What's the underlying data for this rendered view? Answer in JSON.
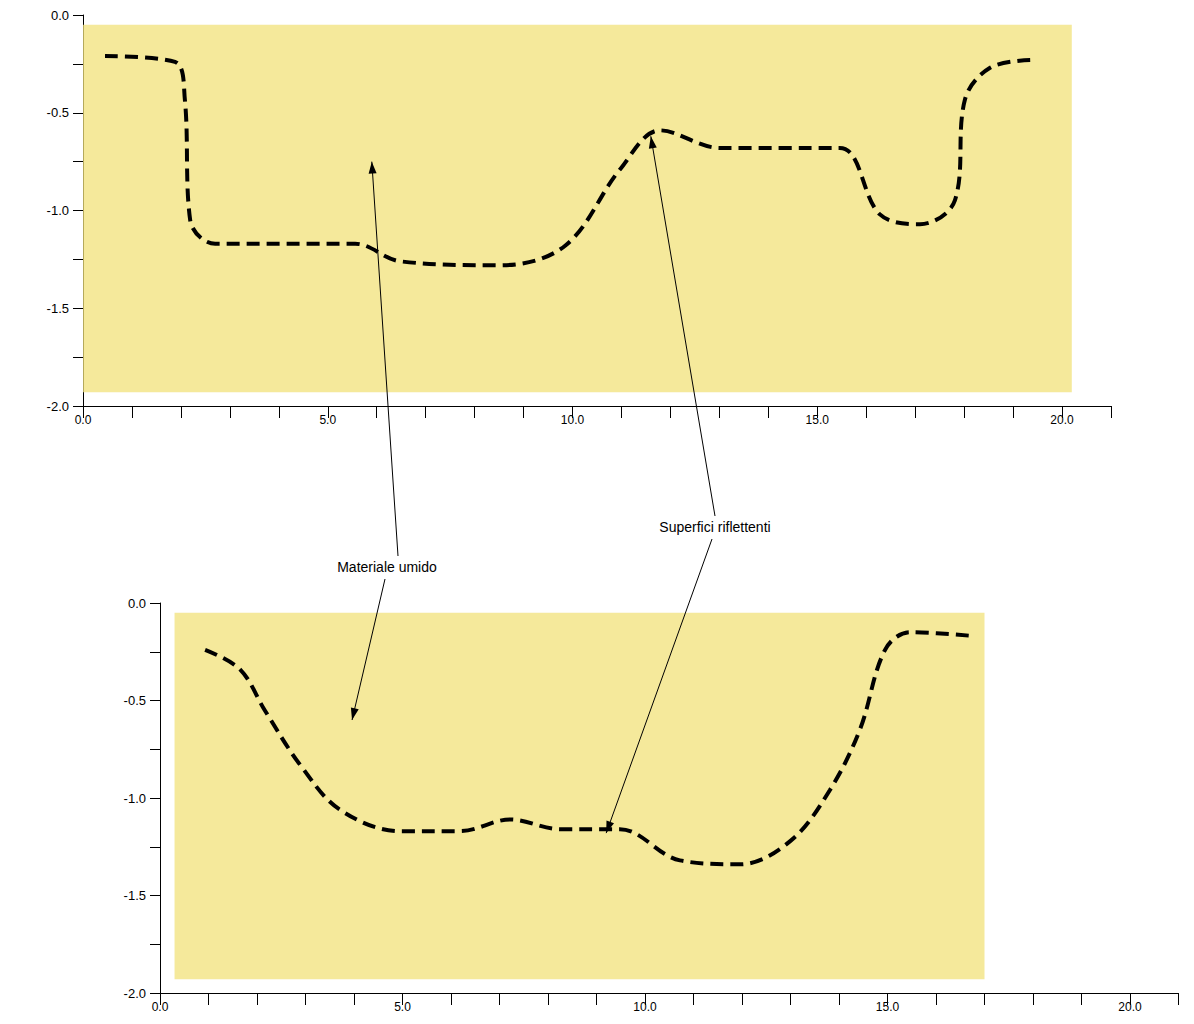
{
  "chart_data": [
    {
      "type": "line",
      "xlim": [
        0,
        21
      ],
      "xticks": [
        {
          "value": 0,
          "label": "0.0"
        },
        {
          "value": 5,
          "label": "5.0"
        },
        {
          "value": 10,
          "label": "10.0"
        },
        {
          "value": 15,
          "label": "15.0"
        },
        {
          "value": 20,
          "label": "20.0"
        }
      ],
      "ylim": [
        -2,
        0
      ],
      "yticks": [
        {
          "value": -2,
          "label": "-2.0"
        },
        {
          "value": -1.5,
          "label": "-1.5"
        },
        {
          "value": -1,
          "label": "-1.0"
        },
        {
          "value": -0.5,
          "label": "-0.5"
        },
        {
          "value": 0,
          "label": "0.0"
        }
      ],
      "grid": false,
      "section": {
        "x": [
          0.0,
          20.2
        ],
        "y": [
          -1.93,
          -0.05
        ],
        "color": "#f2e27a"
      },
      "series": [
        {
          "color": "#000000",
          "line_style": "dashed",
          "x": [
            0.45,
            1.88,
            2.08,
            2.19,
            2.7,
            5.56,
            6.48,
            8.52,
            9.85,
            10.97,
            11.79,
            13.01,
            15.46,
            16.28,
            17.1,
            17.81,
            18.02,
            18.53,
            19.35
          ],
          "values": [
            -0.21,
            -0.24,
            -0.43,
            -1.05,
            -1.17,
            -1.17,
            -1.26,
            -1.28,
            -1.18,
            -0.79,
            -0.59,
            -0.68,
            -0.68,
            -1.02,
            -1.07,
            -0.95,
            -0.43,
            -0.27,
            -0.23
          ]
        }
      ]
    },
    {
      "type": "line",
      "xlim": [
        0,
        21
      ],
      "xticks": [
        {
          "value": 0,
          "label": "0.0"
        },
        {
          "value": 5,
          "label": "5.0"
        },
        {
          "value": 10,
          "label": "10.0"
        },
        {
          "value": 15,
          "label": "15.0"
        },
        {
          "value": 20,
          "label": "20.0"
        }
      ],
      "ylim": [
        -2,
        0
      ],
      "yticks": [
        {
          "value": -2,
          "label": "-2.0"
        },
        {
          "value": -1.5,
          "label": "-1.5"
        },
        {
          "value": -1,
          "label": "-1.0"
        },
        {
          "value": -0.5,
          "label": "-0.5"
        },
        {
          "value": 0,
          "label": "0.0"
        }
      ],
      "grid": false,
      "section": {
        "x": [
          0.3,
          17.0
        ],
        "y": [
          -1.93,
          -0.05
        ],
        "color": "#f2e27a"
      },
      "series": [
        {
          "color": "#000000",
          "line_style": "dashed",
          "x": [
            0.93,
            1.65,
            2.16,
            2.89,
            3.71,
            4.95,
            6.19,
            7.22,
            8.25,
            9.48,
            10.72,
            11.96,
            13.0,
            13.81,
            14.43,
            14.95,
            15.46,
            16.8
          ],
          "values": [
            -0.24,
            -0.34,
            -0.55,
            -0.83,
            -1.06,
            -1.17,
            -1.17,
            -1.11,
            -1.16,
            -1.16,
            -1.32,
            -1.34,
            -1.22,
            -0.96,
            -0.65,
            -0.24,
            -0.15,
            -0.17
          ]
        }
      ]
    }
  ],
  "annotations": [
    {
      "text": "Materiale umido",
      "points": [
        {
          "panel": 0,
          "x": 5.9,
          "y": -0.75
        },
        {
          "panel": 1,
          "x": 3.96,
          "y": -0.6
        }
      ]
    },
    {
      "text": "Superfici riflettenti",
      "points": [
        {
          "panel": 0,
          "x": 11.6,
          "y": -0.62
        },
        {
          "panel": 1,
          "x": 9.2,
          "y": -1.18
        }
      ]
    }
  ]
}
